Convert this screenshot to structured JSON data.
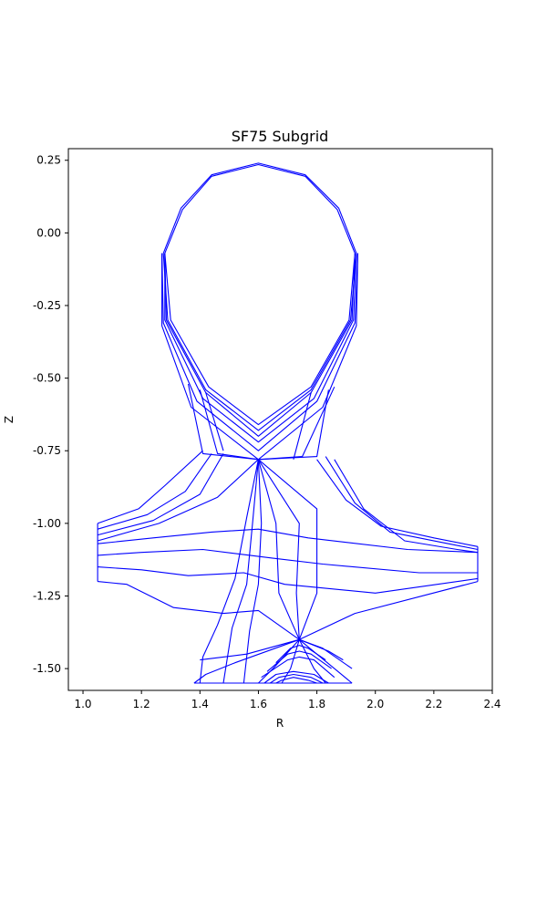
{
  "chart_data": {
    "type": "line",
    "title": "SF75 Subgrid",
    "xlabel": "R",
    "ylabel": "Z",
    "xlim": [
      0.95,
      2.4
    ],
    "ylim": [
      -1.575,
      0.29
    ],
    "xticks": [
      "1.0",
      "1.2",
      "1.4",
      "1.6",
      "1.8",
      "2.0",
      "2.2",
      "2.4"
    ],
    "yticks": [
      "0.25",
      "0.00",
      "-0.25",
      "-0.50",
      "-0.75",
      "-1.00",
      "-1.25",
      "-1.50"
    ],
    "grid": false,
    "legend": "none",
    "line_color": "#0000ff",
    "series": [
      {
        "values": [
          [
            1.28,
            -0.07
          ],
          [
            1.34,
            0.08
          ],
          [
            1.44,
            0.195
          ],
          [
            1.6,
            0.235
          ],
          [
            1.76,
            0.195
          ],
          [
            1.87,
            0.08
          ],
          [
            1.93,
            -0.07
          ],
          [
            1.91,
            -0.3
          ],
          [
            1.78,
            -0.53
          ],
          [
            1.6,
            -0.66
          ],
          [
            1.43,
            -0.53
          ],
          [
            1.3,
            -0.3
          ],
          [
            1.28,
            -0.07
          ]
        ]
      },
      {
        "values": [
          [
            1.275,
            -0.07
          ],
          [
            1.335,
            0.085
          ],
          [
            1.44,
            0.2
          ],
          [
            1.6,
            0.24
          ],
          [
            1.76,
            0.2
          ],
          [
            1.875,
            0.085
          ],
          [
            1.935,
            -0.07
          ],
          [
            1.915,
            -0.3
          ],
          [
            1.78,
            -0.54
          ],
          [
            1.6,
            -0.68
          ],
          [
            1.42,
            -0.54
          ],
          [
            1.29,
            -0.3
          ],
          [
            1.275,
            -0.07
          ]
        ]
      },
      {
        "values": [
          [
            1.28,
            -0.07
          ],
          [
            1.285,
            -0.3
          ],
          [
            1.42,
            -0.55
          ],
          [
            1.6,
            -0.7
          ],
          [
            1.78,
            -0.55
          ],
          [
            1.92,
            -0.3
          ],
          [
            1.93,
            -0.07
          ]
        ]
      },
      {
        "values": [
          [
            1.28,
            -0.07
          ],
          [
            1.28,
            -0.3
          ],
          [
            1.41,
            -0.57
          ],
          [
            1.6,
            -0.72
          ],
          [
            1.79,
            -0.57
          ],
          [
            1.925,
            -0.3
          ],
          [
            1.935,
            -0.07
          ]
        ]
      },
      {
        "values": [
          [
            1.27,
            -0.07
          ],
          [
            1.275,
            -0.31
          ],
          [
            1.39,
            -0.58
          ],
          [
            1.6,
            -0.75
          ],
          [
            1.8,
            -0.58
          ],
          [
            1.93,
            -0.31
          ],
          [
            1.94,
            -0.07
          ]
        ]
      },
      {
        "values": [
          [
            1.27,
            -0.07
          ],
          [
            1.27,
            -0.32
          ],
          [
            1.37,
            -0.6
          ],
          [
            1.6,
            -0.78
          ],
          [
            1.82,
            -0.6
          ],
          [
            1.935,
            -0.32
          ],
          [
            1.94,
            -0.07
          ]
        ]
      },
      {
        "values": [
          [
            1.36,
            -0.52
          ],
          [
            1.41,
            -0.76
          ],
          [
            1.6,
            -0.78
          ],
          [
            1.75,
            -0.77
          ],
          [
            1.86,
            -0.53
          ]
        ]
      },
      {
        "values": [
          [
            1.4,
            -0.54
          ],
          [
            1.46,
            -0.76
          ],
          [
            1.6,
            -0.78
          ],
          [
            1.8,
            -0.77
          ],
          [
            1.84,
            -0.54
          ]
        ]
      },
      {
        "values": [
          [
            1.42,
            -0.55
          ],
          [
            1.48,
            -0.75
          ]
        ]
      },
      {
        "values": [
          [
            1.78,
            -0.55
          ],
          [
            1.72,
            -0.78
          ]
        ]
      },
      {
        "values": [
          [
            1.41,
            -0.75
          ],
          [
            1.28,
            -0.87
          ],
          [
            1.19,
            -0.95
          ],
          [
            1.05,
            -1.0
          ]
        ]
      },
      {
        "values": [
          [
            1.44,
            -0.76
          ],
          [
            1.35,
            -0.89
          ],
          [
            1.22,
            -0.97
          ],
          [
            1.05,
            -1.02
          ]
        ]
      },
      {
        "values": [
          [
            1.48,
            -0.76
          ],
          [
            1.4,
            -0.9
          ],
          [
            1.24,
            -0.99
          ],
          [
            1.05,
            -1.04
          ]
        ]
      },
      {
        "values": [
          [
            1.6,
            -0.78
          ],
          [
            1.46,
            -0.91
          ],
          [
            1.26,
            -1.0
          ],
          [
            1.05,
            -1.06
          ]
        ]
      },
      {
        "values": [
          [
            1.05,
            -1.0
          ],
          [
            1.05,
            -1.2
          ]
        ]
      },
      {
        "values": [
          [
            1.05,
            -1.11
          ],
          [
            1.2,
            -1.1
          ],
          [
            1.41,
            -1.09
          ],
          [
            1.65,
            -1.12
          ],
          [
            1.82,
            -1.14
          ],
          [
            2.15,
            -1.17
          ],
          [
            2.35,
            -1.17
          ]
        ]
      },
      {
        "values": [
          [
            1.05,
            -1.07
          ],
          [
            1.24,
            -1.05
          ],
          [
            1.44,
            -1.03
          ],
          [
            1.6,
            -1.02
          ],
          [
            1.77,
            -1.05
          ],
          [
            2.11,
            -1.09
          ],
          [
            2.35,
            -1.1
          ]
        ]
      },
      {
        "values": [
          [
            1.05,
            -1.15
          ],
          [
            1.2,
            -1.16
          ],
          [
            1.36,
            -1.18
          ],
          [
            1.55,
            -1.17
          ],
          [
            1.69,
            -1.21
          ],
          [
            2.0,
            -1.24
          ],
          [
            2.35,
            -1.19
          ]
        ]
      },
      {
        "values": [
          [
            1.05,
            -1.2
          ],
          [
            1.15,
            -1.21
          ],
          [
            1.31,
            -1.29
          ],
          [
            1.48,
            -1.31
          ],
          [
            1.6,
            -1.3
          ],
          [
            1.74,
            -1.4
          ],
          [
            1.93,
            -1.31
          ],
          [
            2.35,
            -1.2
          ]
        ]
      },
      {
        "values": [
          [
            1.6,
            -0.78
          ],
          [
            1.56,
            -0.98
          ],
          [
            1.52,
            -1.19
          ],
          [
            1.46,
            -1.35
          ],
          [
            1.41,
            -1.46
          ],
          [
            1.4,
            -1.55
          ]
        ]
      },
      {
        "values": [
          [
            1.6,
            -0.78
          ],
          [
            1.58,
            -1.0
          ],
          [
            1.56,
            -1.21
          ],
          [
            1.51,
            -1.36
          ],
          [
            1.48,
            -1.55
          ]
        ]
      },
      {
        "values": [
          [
            1.6,
            -0.78
          ],
          [
            1.61,
            -1.0
          ],
          [
            1.6,
            -1.21
          ],
          [
            1.57,
            -1.37
          ],
          [
            1.55,
            -1.55
          ]
        ]
      },
      {
        "values": [
          [
            1.6,
            -0.78
          ],
          [
            1.66,
            -1.0
          ],
          [
            1.67,
            -1.24
          ],
          [
            1.74,
            -1.4
          ]
        ]
      },
      {
        "values": [
          [
            1.6,
            -0.78
          ],
          [
            1.74,
            -1.0
          ],
          [
            1.73,
            -1.24
          ],
          [
            1.74,
            -1.4
          ]
        ]
      },
      {
        "values": [
          [
            1.6,
            -0.78
          ],
          [
            1.8,
            -0.95
          ],
          [
            1.8,
            -1.24
          ],
          [
            1.74,
            -1.4
          ]
        ]
      },
      {
        "values": [
          [
            1.8,
            -0.78
          ],
          [
            1.9,
            -0.92
          ],
          [
            2.02,
            -1.01
          ],
          [
            2.2,
            -1.05
          ],
          [
            2.35,
            -1.08
          ]
        ]
      },
      {
        "values": [
          [
            1.83,
            -0.77
          ],
          [
            1.93,
            -0.93
          ],
          [
            2.05,
            -1.03
          ],
          [
            2.25,
            -1.07
          ],
          [
            2.35,
            -1.09
          ]
        ]
      },
      {
        "values": [
          [
            1.86,
            -0.78
          ],
          [
            1.96,
            -0.95
          ],
          [
            2.1,
            -1.06
          ],
          [
            2.28,
            -1.09
          ],
          [
            2.35,
            -1.1
          ]
        ]
      },
      {
        "values": [
          [
            2.35,
            -1.08
          ],
          [
            2.35,
            -1.2
          ]
        ]
      },
      {
        "values": [
          [
            1.74,
            -1.4
          ],
          [
            1.52,
            -1.48
          ],
          [
            1.42,
            -1.52
          ],
          [
            1.38,
            -1.55
          ]
        ]
      },
      {
        "values": [
          [
            1.74,
            -1.4
          ],
          [
            1.56,
            -1.45
          ],
          [
            1.4,
            -1.47
          ]
        ]
      },
      {
        "values": [
          [
            1.74,
            -1.4
          ],
          [
            1.84,
            -1.44
          ],
          [
            1.89,
            -1.47
          ]
        ]
      },
      {
        "values": [
          [
            1.74,
            -1.4
          ],
          [
            1.82,
            -1.43
          ],
          [
            1.92,
            -1.5
          ]
        ]
      },
      {
        "values": [
          [
            1.74,
            -1.4
          ],
          [
            1.65,
            -1.5
          ],
          [
            1.6,
            -1.55
          ]
        ]
      },
      {
        "values": [
          [
            1.74,
            -1.4
          ],
          [
            1.71,
            -1.5
          ],
          [
            1.68,
            -1.55
          ]
        ]
      },
      {
        "values": [
          [
            1.74,
            -1.4
          ],
          [
            1.79,
            -1.5
          ],
          [
            1.83,
            -1.55
          ]
        ]
      },
      {
        "values": [
          [
            1.74,
            -1.4
          ],
          [
            1.86,
            -1.5
          ],
          [
            1.92,
            -1.55
          ]
        ]
      },
      {
        "values": [
          [
            1.38,
            -1.55
          ],
          [
            1.92,
            -1.55
          ]
        ]
      },
      {
        "values": [
          [
            1.62,
            -1.55
          ],
          [
            1.66,
            -1.52
          ],
          [
            1.72,
            -1.51
          ],
          [
            1.79,
            -1.52
          ],
          [
            1.84,
            -1.55
          ]
        ]
      },
      {
        "values": [
          [
            1.64,
            -1.55
          ],
          [
            1.67,
            -1.53
          ],
          [
            1.72,
            -1.52
          ],
          [
            1.78,
            -1.53
          ],
          [
            1.82,
            -1.55
          ]
        ]
      },
      {
        "values": [
          [
            1.66,
            -1.55
          ],
          [
            1.68,
            -1.54
          ],
          [
            1.72,
            -1.53
          ],
          [
            1.77,
            -1.54
          ],
          [
            1.8,
            -1.55
          ]
        ]
      },
      {
        "values": [
          [
            1.61,
            -1.53
          ],
          [
            1.7,
            -1.47
          ],
          [
            1.74,
            -1.46
          ],
          [
            1.79,
            -1.47
          ],
          [
            1.86,
            -1.53
          ]
        ]
      },
      {
        "values": [
          [
            1.63,
            -1.51
          ],
          [
            1.7,
            -1.45
          ],
          [
            1.74,
            -1.44
          ],
          [
            1.78,
            -1.45
          ],
          [
            1.85,
            -1.5
          ]
        ]
      },
      {
        "values": [
          [
            1.66,
            -1.48
          ],
          [
            1.71,
            -1.43
          ],
          [
            1.74,
            -1.42
          ],
          [
            1.77,
            -1.43
          ],
          [
            1.83,
            -1.47
          ]
        ]
      }
    ]
  }
}
